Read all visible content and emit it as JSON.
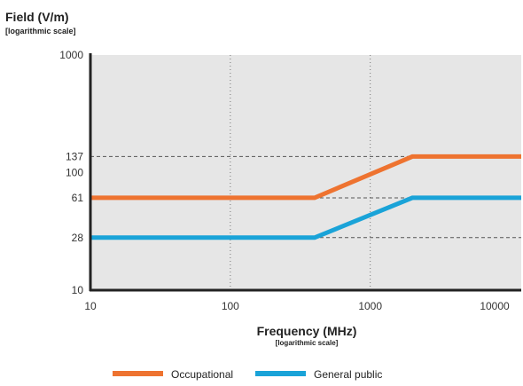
{
  "chart_data": {
    "type": "line",
    "ylabel": "Field (V/m)",
    "ylabel_sub": "[logarithmic scale]",
    "xlabel": "Frequency (MHz)",
    "xlabel_sub": "[logarithmic scale]",
    "x_scale": "log",
    "y_scale": "log",
    "xlim": [
      10,
      12000
    ],
    "ylim": [
      10,
      1000
    ],
    "x_ticks": [
      10,
      100,
      1000,
      10000
    ],
    "x_tick_labels": [
      "10",
      "100",
      "1000",
      "10000"
    ],
    "y_ticks": [
      10,
      28,
      61,
      100,
      137,
      1000
    ],
    "y_tick_labels": [
      "10",
      "28",
      "61",
      "100",
      "137",
      "1000"
    ],
    "x_gridlines": [
      100,
      1000
    ],
    "y_reference_lines": [
      28,
      61,
      137
    ],
    "series": [
      {
        "name": "Occupational",
        "color": "#EE7330",
        "points": [
          [
            10,
            61
          ],
          [
            400,
            61
          ],
          [
            2000,
            137
          ],
          [
            12000,
            137
          ]
        ]
      },
      {
        "name": "General public",
        "color": "#1AA3D8",
        "points": [
          [
            10,
            28
          ],
          [
            400,
            28
          ],
          [
            2000,
            61
          ],
          [
            12000,
            61
          ]
        ]
      }
    ],
    "plot_background": "#E6E6E6",
    "legend_position": "bottom"
  }
}
